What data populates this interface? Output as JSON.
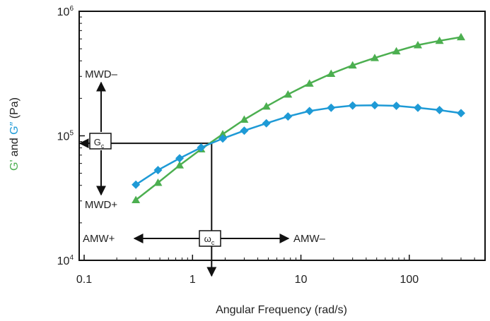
{
  "chart_data": {
    "type": "line",
    "xlabel": "Angular Frequency (rad/s)",
    "ylabel_parts": {
      "g_prime": "G'",
      "and": " and ",
      "g_double_prime": "G″",
      "unit": " (Pa)"
    },
    "xscale": "log",
    "yscale": "log",
    "xlim": [
      0.09,
      500
    ],
    "ylim": [
      10000,
      1000000
    ],
    "x_ticks": [
      {
        "value": 0.1,
        "label": "0.1"
      },
      {
        "value": 1,
        "label": "1"
      },
      {
        "value": 10,
        "label": "10"
      },
      {
        "value": 100,
        "label": "100"
      }
    ],
    "y_ticks": [
      {
        "value": 10000,
        "base": "10",
        "exp": "4"
      },
      {
        "value": 100000,
        "base": "10",
        "exp": "5"
      },
      {
        "value": 1000000,
        "base": "10",
        "exp": "6"
      }
    ],
    "grid": false,
    "series": [
      {
        "key": "g_prime",
        "color": "#4caf50",
        "marker": "triangle",
        "points": [
          [
            0.3,
            30500
          ],
          [
            0.48,
            42000
          ],
          [
            0.76,
            58000
          ],
          [
            1.2,
            78000
          ],
          [
            1.9,
            103000
          ],
          [
            3.0,
            135000
          ],
          [
            4.8,
            172000
          ],
          [
            7.6,
            215000
          ],
          [
            12,
            263000
          ],
          [
            19,
            315000
          ],
          [
            30,
            368000
          ],
          [
            48,
            422000
          ],
          [
            76,
            478000
          ],
          [
            120,
            535000
          ],
          [
            190,
            580000
          ],
          [
            300,
            620000
          ]
        ]
      },
      {
        "key": "g_double_prime",
        "color": "#1e9ad6",
        "marker": "diamond",
        "points": [
          [
            0.3,
            40500
          ],
          [
            0.48,
            53000
          ],
          [
            0.76,
            66000
          ],
          [
            1.2,
            80500
          ],
          [
            1.9,
            95000
          ],
          [
            3.0,
            110000
          ],
          [
            4.8,
            126000
          ],
          [
            7.6,
            143000
          ],
          [
            12,
            158000
          ],
          [
            19,
            168000
          ],
          [
            30,
            175000
          ],
          [
            48,
            176000
          ],
          [
            76,
            174000
          ],
          [
            120,
            168000
          ],
          [
            190,
            161000
          ],
          [
            300,
            152000
          ]
        ]
      }
    ],
    "crossover": {
      "x": 1.5,
      "y": 87000
    },
    "annotations": {
      "gc_base": "G",
      "gc_sub": "c",
      "wc_base": "ω",
      "wc_sub": "c",
      "mwd_minus": "MWD–",
      "mwd_plus": "MWD+",
      "amw_plus": "AMW+",
      "amw_minus": "AMW–"
    }
  }
}
